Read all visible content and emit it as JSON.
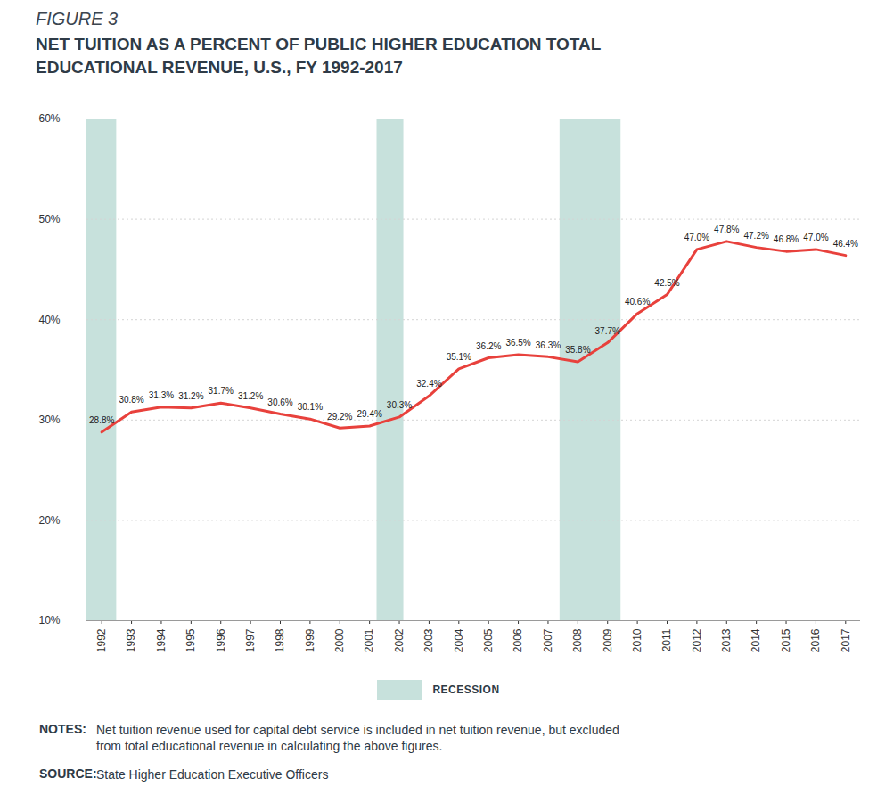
{
  "chart_data": {
    "type": "line",
    "figure_label": "FIGURE 3",
    "title": "NET TUITION AS A PERCENT OF PUBLIC HIGHER EDUCATION TOTAL EDUCATIONAL REVENUE, U.S., FY 1992-2017",
    "x": [
      1992,
      1993,
      1994,
      1995,
      1996,
      1997,
      1998,
      1999,
      2000,
      2001,
      2002,
      2003,
      2004,
      2005,
      2006,
      2007,
      2008,
      2009,
      2010,
      2011,
      2012,
      2013,
      2014,
      2015,
      2016,
      2017
    ],
    "values": [
      28.8,
      30.8,
      31.3,
      31.2,
      31.7,
      31.2,
      30.6,
      30.1,
      29.2,
      29.4,
      30.3,
      32.4,
      35.1,
      36.2,
      36.5,
      36.3,
      35.8,
      37.7,
      40.6,
      42.5,
      47.0,
      47.8,
      47.2,
      46.8,
      47.0,
      46.4
    ],
    "value_labels": [
      "28.8%",
      "30.8%",
      "31.3%",
      "31.2%",
      "31.7%",
      "31.2%",
      "30.6%",
      "30.1%",
      "29.2%",
      "29.4%",
      "30.3%",
      "32.4%",
      "35.1%",
      "36.2%",
      "36.5%",
      "36.3%",
      "35.8%",
      "37.7%",
      "40.6%",
      "42.5%",
      "47.0%",
      "47.8%",
      "47.2%",
      "46.8%",
      "47.0%",
      "46.4%"
    ],
    "color": "#e8413c",
    "data_labels": true,
    "xlim": [
      1991.5,
      2017.5
    ],
    "xticks": [
      1992,
      1993,
      1994,
      1995,
      1996,
      1997,
      1998,
      1999,
      2000,
      2001,
      2002,
      2003,
      2004,
      2005,
      2006,
      2007,
      2008,
      2009,
      2010,
      2011,
      2012,
      2013,
      2014,
      2015,
      2016,
      2017
    ],
    "ylim": [
      10,
      60
    ],
    "yticks": [
      {
        "value": 10,
        "label": "10%"
      },
      {
        "value": 20,
        "label": "20%"
      },
      {
        "value": 30,
        "label": "30%"
      },
      {
        "value": 40,
        "label": "40%"
      },
      {
        "value": 50,
        "label": "50%"
      },
      {
        "value": 60,
        "label": "60%"
      }
    ],
    "grid": true,
    "legend": "bottom",
    "recessions": {
      "name": "RECESSION",
      "color": "#c7e1dc",
      "periods": [
        {
          "start": 1991.5,
          "end": 1992.5
        },
        {
          "start": 2001.25,
          "end": 2002.15
        },
        {
          "start": 2007.4,
          "end": 2009.45
        }
      ]
    },
    "notes": {
      "label": "NOTES:",
      "text": "Net tuition revenue used for capital debt service is included in net tuition revenue, but excluded from total educational revenue in calculating the above figures."
    },
    "source": {
      "label": "SOURCE:",
      "text": "State Higher Education Executive Officers"
    }
  }
}
